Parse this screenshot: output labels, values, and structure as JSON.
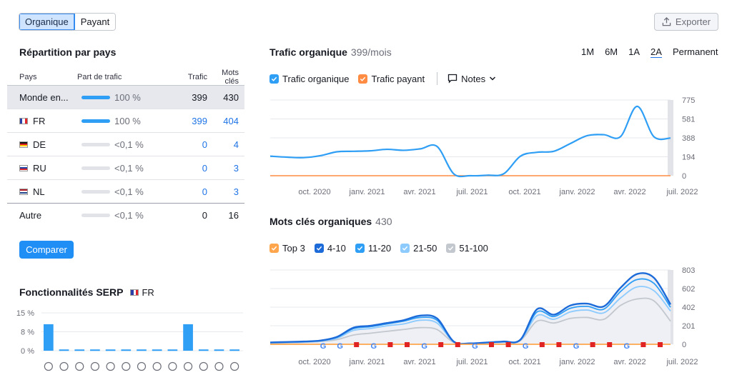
{
  "toggle": {
    "organic": "Organique",
    "paid": "Payant"
  },
  "export_label": "Exporter",
  "country_section": {
    "title": "Répartition par pays",
    "headers": {
      "country": "Pays",
      "share": "Part de trafic",
      "traffic": "Trafic",
      "keywords": "Mots clés"
    },
    "rows": [
      {
        "country": "Monde en...",
        "share": "100 %",
        "traffic": "399",
        "keywords": "430",
        "full": true
      },
      {
        "country": "FR",
        "share": "100 %",
        "traffic": "399",
        "keywords": "404",
        "full": true
      },
      {
        "country": "DE",
        "share": "<0,1 %",
        "traffic": "0",
        "keywords": "4",
        "full": false
      },
      {
        "country": "RU",
        "share": "<0,1 %",
        "traffic": "0",
        "keywords": "3",
        "full": false
      },
      {
        "country": "NL",
        "share": "<0,1 %",
        "traffic": "0",
        "keywords": "3",
        "full": false
      },
      {
        "country": "Autre",
        "share": "<0,1 %",
        "traffic": "0",
        "keywords": "16",
        "full": false
      }
    ],
    "compare_label": "Comparer"
  },
  "serp": {
    "title": "Fonctionnalités SERP",
    "country": "FR",
    "chart_data": {
      "type": "bar",
      "yticks": [
        "15 %",
        "8 %",
        "0 %"
      ],
      "ylim": [
        0,
        15
      ],
      "values": [
        10.5,
        0.5,
        0.5,
        0.5,
        0.5,
        0.5,
        0.5,
        0.5,
        0.5,
        10.5,
        0.5,
        0.5,
        0.5
      ],
      "icons": [
        "graduation-cap-icon",
        "map-pin-icon",
        "doc-icon",
        "image-icon",
        "link-icon",
        "star-icon",
        "play-icon",
        "play-icon",
        "crown-icon",
        "gallery-icon",
        "play-icon",
        "chat-icon",
        "question-icon"
      ]
    }
  },
  "traffic": {
    "title": "Trafic organique",
    "count": "399/mois",
    "ranges": [
      "1M",
      "6M",
      "1A",
      "2A",
      "Permanent"
    ],
    "active_range": "2A",
    "legend": {
      "organic": "Trafic organique",
      "paid": "Trafic payant",
      "notes": "Notes"
    },
    "colors": {
      "organic": "#2f9ef5",
      "paid": "#ff8c42"
    },
    "chart_data": {
      "type": "line",
      "xticks": [
        "oct. 2020",
        "janv. 2021",
        "avr. 2021",
        "juil. 2021",
        "oct. 2021",
        "janv. 2022",
        "avr. 2022",
        "juil. 2022"
      ],
      "yticks": [
        "775",
        "581",
        "388",
        "194",
        "0"
      ],
      "ylim": [
        0,
        775
      ],
      "series": [
        {
          "name": "Trafic organique",
          "x": [
            "2020-07",
            "2020-08",
            "2020-09",
            "2020-10",
            "2020-11",
            "2020-12",
            "2021-01",
            "2021-02",
            "2021-03",
            "2021-04",
            "2021-05",
            "2021-06",
            "2021-07",
            "2021-08",
            "2021-09",
            "2021-10",
            "2021-11",
            "2021-12",
            "2022-01",
            "2022-02",
            "2022-03",
            "2022-04",
            "2022-05",
            "2022-06",
            "2022-07"
          ],
          "values": [
            200,
            190,
            185,
            205,
            245,
            250,
            255,
            270,
            260,
            275,
            300,
            20,
            0,
            5,
            20,
            200,
            240,
            250,
            330,
            410,
            420,
            400,
            710,
            400,
            385
          ]
        }
      ]
    }
  },
  "keywords": {
    "title": "Mots clés organiques",
    "count": "430",
    "legend": [
      "Top 3",
      "4-10",
      "11-20",
      "21-50",
      "51-100"
    ],
    "colors": [
      "#ffa64d",
      "#1c6bd9",
      "#2f9ef5",
      "#8dcbff",
      "#c3c7ce"
    ],
    "chart_data": {
      "type": "area",
      "xticks": [
        "oct. 2020",
        "janv. 2021",
        "avr. 2021",
        "juil. 2021",
        "oct. 2021",
        "janv. 2022",
        "avr. 2022",
        "juil. 2022"
      ],
      "yticks": [
        "803",
        "602",
        "402",
        "201",
        "0"
      ],
      "ylim": [
        0,
        803
      ],
      "series": [
        {
          "name": "Top 3",
          "values": [
            0,
            0,
            0,
            0,
            0,
            0,
            0,
            0,
            0,
            0,
            0,
            0,
            0,
            0,
            0,
            0,
            0,
            0,
            0,
            0,
            0,
            0,
            0,
            0,
            0
          ]
        },
        {
          "name": "4-10",
          "values": [
            20,
            25,
            30,
            40,
            80,
            180,
            200,
            230,
            260,
            310,
            280,
            30,
            10,
            20,
            30,
            50,
            380,
            320,
            420,
            440,
            410,
            610,
            760,
            720,
            430
          ]
        },
        {
          "name": "11-20",
          "values": [
            20,
            25,
            30,
            40,
            75,
            170,
            190,
            220,
            250,
            290,
            260,
            30,
            10,
            20,
            30,
            50,
            350,
            300,
            390,
            410,
            380,
            570,
            700,
            660,
            400
          ]
        },
        {
          "name": "21-50",
          "values": [
            15,
            20,
            25,
            35,
            65,
            150,
            170,
            200,
            220,
            260,
            230,
            25,
            8,
            18,
            25,
            45,
            310,
            270,
            350,
            370,
            340,
            500,
            620,
            580,
            360
          ]
        },
        {
          "name": "51-100",
          "values": [
            10,
            15,
            20,
            30,
            50,
            100,
            120,
            140,
            160,
            180,
            160,
            20,
            5,
            15,
            20,
            40,
            250,
            230,
            280,
            290,
            270,
            420,
            490,
            470,
            250
          ]
        }
      ]
    }
  }
}
